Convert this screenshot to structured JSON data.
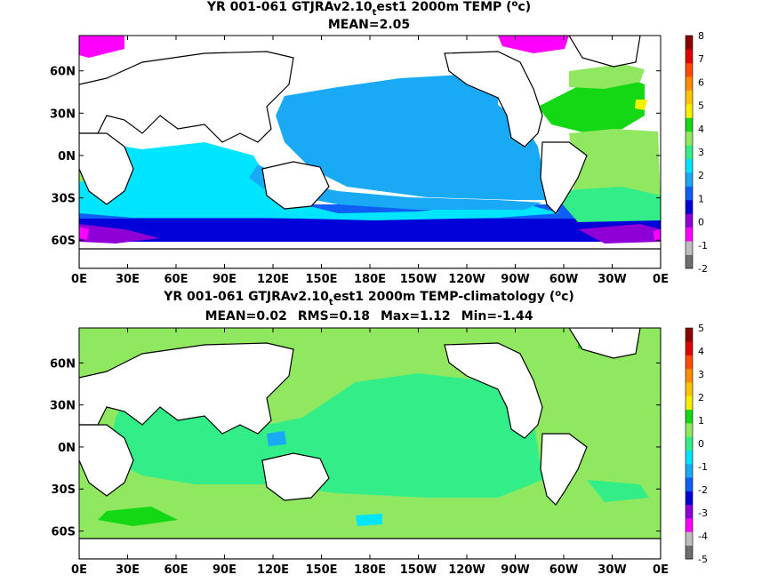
{
  "chart_data": [
    {
      "type": "heatmap",
      "title_parts": [
        "YR 001-061 GTJRAv2.10",
        "t",
        "est1 2000m TEMP (",
        "o",
        "c)"
      ],
      "subtitle": "MEAN=2.05",
      "x_ticks": [
        "0E",
        "30E",
        "60E",
        "90E",
        "120E",
        "150E",
        "180E",
        "150W",
        "120W",
        "90W",
        "60W",
        "30W",
        "0E"
      ],
      "y_ticks": [
        "60N",
        "30N",
        "0N",
        "30S",
        "60S"
      ],
      "xlim": [
        0,
        360
      ],
      "ylim": [
        -80,
        85
      ],
      "grid": false,
      "colorbar": {
        "levels": [
          "-2",
          "-1",
          "0",
          "1",
          "2",
          "3",
          "4",
          "5",
          "6",
          "7",
          "8"
        ],
        "colors": [
          "#6e6e6e",
          "#bdbdbd",
          "#ff00ff",
          "#8f00d6",
          "#0000d8",
          "#0f5ef5",
          "#1aaaf5",
          "#00e5ff",
          "#33ee88",
          "#8fe860",
          "#13d813",
          "#f5f000",
          "#ffc400",
          "#ff8c00",
          "#ff4a00",
          "#e00000",
          "#8b0000"
        ]
      },
      "mean": 2.05
    },
    {
      "type": "heatmap",
      "title_parts": [
        "YR 001-061 GTJRAv2.10",
        "t",
        "est1 2000m TEMP-climatology (",
        "o",
        "c)"
      ],
      "stats": [
        "MEAN=0.02",
        "RMS=0.18",
        "Max=1.12",
        "Min=-1.44"
      ],
      "x_ticks": [
        "0E",
        "30E",
        "60E",
        "90E",
        "120E",
        "150E",
        "180E",
        "150W",
        "120W",
        "90W",
        "60W",
        "30W",
        "0E"
      ],
      "y_ticks": [
        "60N",
        "30N",
        "0N",
        "30S",
        "60S"
      ],
      "xlim": [
        0,
        360
      ],
      "ylim": [
        -80,
        85
      ],
      "grid": false,
      "colorbar": {
        "levels": [
          "-5",
          "-4",
          "-3",
          "-2",
          "-1",
          "0",
          "1",
          "2",
          "3",
          "4",
          "5"
        ],
        "colors": [
          "#6e6e6e",
          "#bdbdbd",
          "#ff00ff",
          "#8f00d6",
          "#0000d8",
          "#0f5ef5",
          "#1aaaf5",
          "#00e5ff",
          "#33ee88",
          "#8fe860",
          "#13d813",
          "#f5f000",
          "#ffc400",
          "#ff8c00",
          "#ff4a00",
          "#e00000",
          "#8b0000"
        ]
      },
      "mean": 0.02,
      "rms": 0.18,
      "max": 1.12,
      "min": -1.44
    }
  ],
  "colors": {
    "land": "#ffffff",
    "coast": "#000000",
    "deep_blue": "#1aaaf5",
    "cyan": "#00e5ff",
    "mint": "#33ee88",
    "light_green": "#8fe860",
    "green": "#13d813",
    "blue": "#0000d8",
    "purple": "#8f00d6",
    "magenta": "#ff00ff"
  }
}
